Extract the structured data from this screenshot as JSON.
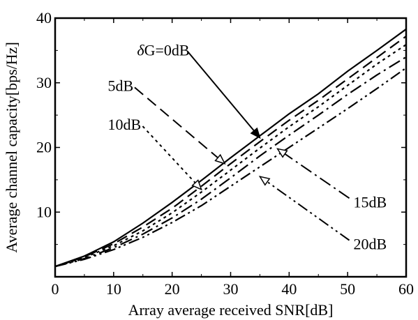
{
  "chart_data": {
    "type": "line",
    "xlabel": "Array average received SNR[dB]",
    "ylabel": "Average channel capacity[bps/Hz]",
    "xlim": [
      0,
      60
    ],
    "ylim": [
      0,
      40
    ],
    "xticks": [
      0,
      10,
      20,
      30,
      40,
      50,
      60
    ],
    "yticks": [
      10,
      20,
      30,
      40
    ],
    "grid": false,
    "legend": "none",
    "series": [
      {
        "dash": "solid",
        "x": [
          0,
          5,
          10,
          15,
          20,
          25,
          30,
          35,
          40,
          45,
          50,
          55,
          60
        ],
        "y": [
          1.6,
          3.2,
          5.4,
          8.3,
          11.5,
          14.9,
          18.4,
          21.8,
          25.2,
          28.3,
          31.8,
          35.0,
          38.3
        ]
      },
      {
        "dash": "dash",
        "x": [
          0,
          5,
          10,
          15,
          20,
          25,
          30,
          35,
          40,
          45,
          50,
          55,
          60
        ],
        "y": [
          1.6,
          3.1,
          5.1,
          7.7,
          10.6,
          14.0,
          17.5,
          20.9,
          24.2,
          27.3,
          30.6,
          33.9,
          37.2
        ]
      },
      {
        "dash": "short-dash",
        "x": [
          0,
          5,
          10,
          15,
          20,
          25,
          30,
          35,
          40,
          45,
          50,
          55,
          60
        ],
        "y": [
          1.6,
          3.0,
          4.8,
          7.1,
          9.9,
          13.1,
          16.5,
          19.9,
          23.2,
          26.3,
          29.6,
          32.9,
          35.9
        ]
      },
      {
        "dash": "dash-dot",
        "x": [
          0,
          5,
          10,
          15,
          20,
          25,
          30,
          35,
          40,
          45,
          50,
          55,
          60
        ],
        "y": [
          1.6,
          2.8,
          4.5,
          6.6,
          9.1,
          12.0,
          15.3,
          18.7,
          21.9,
          25.0,
          28.2,
          31.2,
          34.0
        ]
      },
      {
        "dash": "dash-dot-dot",
        "x": [
          0,
          5,
          10,
          15,
          20,
          25,
          30,
          35,
          40,
          45,
          50,
          55,
          60
        ],
        "y": [
          1.6,
          2.7,
          4.2,
          6.1,
          8.4,
          11.0,
          14.0,
          17.0,
          20.0,
          23.0,
          26.0,
          29.1,
          32.3
        ]
      }
    ],
    "annotations": [
      {
        "text_parts": [
          "δ",
          "G=0dB"
        ],
        "at": [
          14,
          35
        ],
        "arrow_to": [
          35,
          21.5
        ],
        "arrow_style": "solid"
      },
      {
        "text_parts": [
          "",
          "5dB"
        ],
        "at": [
          9,
          29.5
        ],
        "arrow_to": [
          29,
          17.5
        ],
        "arrow_style": "dash"
      },
      {
        "text_parts": [
          "",
          "10dB"
        ],
        "at": [
          9,
          23.5
        ],
        "arrow_to": [
          25,
          13.5
        ],
        "arrow_style": "short-dash"
      },
      {
        "text_parts": [
          "",
          "15dB"
        ],
        "at": [
          51,
          11.5
        ],
        "arrow_to": [
          38,
          19.8
        ],
        "arrow_style": "dash-dot"
      },
      {
        "text_parts": [
          "",
          "20dB"
        ],
        "at": [
          51,
          5
        ],
        "arrow_to": [
          35,
          15.5
        ],
        "arrow_style": "dash-dot-dot"
      }
    ]
  }
}
